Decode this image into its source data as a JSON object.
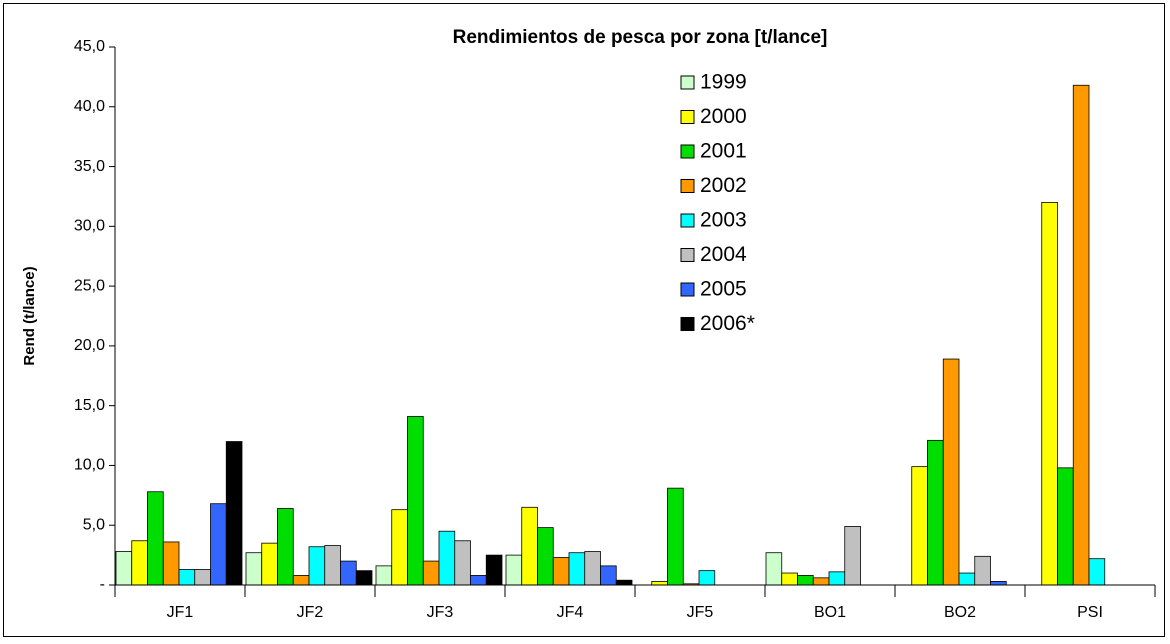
{
  "chart_data": {
    "type": "bar",
    "title": "Rendimientos de pesca por zona [t/lance]",
    "y_label": "Rend (t/lance)",
    "categories": [
      "JF1",
      "JF2",
      "JF3",
      "JF4",
      "JF5",
      "BO1",
      "BO2",
      "PSI"
    ],
    "series": [
      {
        "name": "1999",
        "color": "#ccffcc",
        "values": [
          2.8,
          2.7,
          1.6,
          2.5,
          0,
          2.7,
          0,
          0
        ]
      },
      {
        "name": "2000",
        "color": "#ffff00",
        "values": [
          3.7,
          3.5,
          6.3,
          6.5,
          0.3,
          1.0,
          9.9,
          32.0
        ]
      },
      {
        "name": "2001",
        "color": "#00dd00",
        "values": [
          7.8,
          6.4,
          14.1,
          4.8,
          8.1,
          0.8,
          12.1,
          9.8
        ]
      },
      {
        "name": "2002",
        "color": "#ff9900",
        "values": [
          3.6,
          0.8,
          2.0,
          2.3,
          0.1,
          0.6,
          18.9,
          41.8
        ]
      },
      {
        "name": "2003",
        "color": "#00ffff",
        "values": [
          1.3,
          3.2,
          4.5,
          2.7,
          1.2,
          1.1,
          1.0,
          2.2
        ]
      },
      {
        "name": "2004",
        "color": "#c0c0c0",
        "values": [
          1.3,
          3.3,
          3.7,
          2.8,
          0,
          4.9,
          2.4,
          0
        ]
      },
      {
        "name": "2005",
        "color": "#3366ff",
        "values": [
          6.8,
          2.0,
          0.8,
          1.6,
          0,
          0,
          0.3,
          0
        ]
      },
      {
        "name": "2006*",
        "color": "#000000",
        "values": [
          12.0,
          1.2,
          2.5,
          0.4,
          0,
          0,
          0,
          0
        ]
      }
    ],
    "ylim": [
      0,
      45
    ],
    "yticks": [
      {
        "value": 0,
        "label": "-"
      },
      {
        "value": 5,
        "label": "5,0"
      },
      {
        "value": 10,
        "label": "10,0"
      },
      {
        "value": 15,
        "label": "15,0"
      },
      {
        "value": 20,
        "label": "20,0"
      },
      {
        "value": 25,
        "label": "25,0"
      },
      {
        "value": 30,
        "label": "30,0"
      },
      {
        "value": 35,
        "label": "35,0"
      },
      {
        "value": 40,
        "label": "40,0"
      },
      {
        "value": 45,
        "label": "45,0"
      }
    ],
    "grid": false
  }
}
